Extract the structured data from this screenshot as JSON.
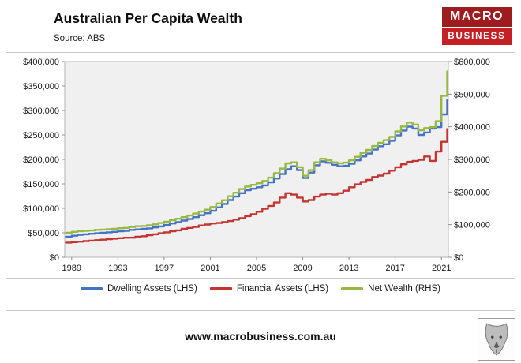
{
  "header": {
    "title": "Australian Per Capita Wealth",
    "source": "Source: ABS"
  },
  "logo": {
    "line1": "MACRO",
    "line2": "BUSINESS",
    "top_color": "#9e1b1e",
    "bottom_color": "#c42127"
  },
  "footer": {
    "url": "www.macrobusiness.com.au"
  },
  "chart_data": {
    "type": "line",
    "title": "Australian Per Capita Wealth",
    "subtitle": "Source: ABS",
    "line_style": "step",
    "grid": false,
    "plot_background": "#f0f0f0",
    "legend_position": "bottom",
    "x_range": [
      1988.4,
      2021.6
    ],
    "x_ticks": [
      1989,
      1993,
      1997,
      2001,
      2005,
      2009,
      2013,
      2017,
      2021
    ],
    "left_axis": {
      "min": 0,
      "max": 400000,
      "tick_step": 50000,
      "tick_labels": [
        "$0",
        "$50,000",
        "$100,000",
        "$150,000",
        "$200,000",
        "$250,000",
        "$300,000",
        "$350,000",
        "$400,000"
      ]
    },
    "right_axis": {
      "min": 0,
      "max": 600000,
      "tick_step": 100000,
      "tick_labels": [
        "$0",
        "$100,000",
        "$200,000",
        "$300,000",
        "$400,000",
        "$500,000",
        "$600,000"
      ]
    },
    "x": [
      1988.5,
      1989,
      1989.5,
      1990,
      1990.5,
      1991,
      1991.5,
      1992,
      1992.5,
      1993,
      1993.5,
      1994,
      1994.5,
      1995,
      1995.5,
      1996,
      1996.5,
      1997,
      1997.5,
      1998,
      1998.5,
      1999,
      1999.5,
      2000,
      2000.5,
      2001,
      2001.5,
      2002,
      2002.5,
      2003,
      2003.5,
      2004,
      2004.5,
      2005,
      2005.5,
      2006,
      2006.5,
      2007,
      2007.5,
      2008,
      2008.5,
      2009,
      2009.5,
      2010,
      2010.5,
      2011,
      2011.5,
      2012,
      2012.5,
      2013,
      2013.5,
      2014,
      2014.5,
      2015,
      2015.5,
      2016,
      2016.5,
      2017,
      2017.5,
      2018,
      2018.5,
      2019,
      2019.5,
      2020,
      2020.5,
      2021,
      2021.5
    ],
    "series": [
      {
        "name": "Dwelling Assets (LHS)",
        "axis": "left",
        "color": "#4472c4",
        "values": [
          42000,
          44000,
          46000,
          47000,
          48000,
          49000,
          50000,
          51000,
          52000,
          53000,
          54000,
          56000,
          57000,
          58000,
          59000,
          61000,
          63000,
          66000,
          69000,
          72000,
          75000,
          78000,
          82000,
          86000,
          90000,
          95000,
          102000,
          109000,
          117000,
          124000,
          131000,
          137000,
          140000,
          143000,
          147000,
          153000,
          161000,
          170000,
          180000,
          186000,
          178000,
          162000,
          173000,
          188000,
          196000,
          193000,
          189000,
          186000,
          187000,
          191000,
          198000,
          206000,
          212000,
          220000,
          227000,
          231000,
          238000,
          249000,
          259000,
          267000,
          263000,
          250000,
          255000,
          263000,
          266000,
          292000,
          321000
        ]
      },
      {
        "name": "Financial Assets (LHS)",
        "axis": "left",
        "color": "#c43431",
        "values": [
          30000,
          31000,
          32000,
          33000,
          34000,
          35000,
          36000,
          37000,
          38000,
          39000,
          40000,
          40000,
          42000,
          43000,
          45000,
          47000,
          49000,
          51000,
          53000,
          55000,
          58000,
          60000,
          62000,
          65000,
          67000,
          69000,
          70000,
          72000,
          74000,
          77000,
          80000,
          84000,
          88000,
          93000,
          99000,
          105000,
          112000,
          122000,
          131000,
          128000,
          122000,
          114000,
          117000,
          124000,
          128000,
          130000,
          128000,
          131000,
          136000,
          143000,
          149000,
          154000,
          158000,
          164000,
          167000,
          171000,
          177000,
          184000,
          190000,
          195000,
          197000,
          199000,
          206000,
          197000,
          216000,
          236000,
          262000
        ]
      },
      {
        "name": "Net Wealth (RHS)",
        "axis": "right",
        "color": "#97b944",
        "values": [
          75000,
          78000,
          80000,
          81000,
          82000,
          84000,
          85000,
          86000,
          87000,
          89000,
          90000,
          93000,
          95000,
          96000,
          98000,
          101000,
          105000,
          109000,
          114000,
          118000,
          123000,
          128000,
          134000,
          140000,
          146000,
          154000,
          165000,
          175000,
          187000,
          198000,
          209000,
          217000,
          222000,
          227000,
          234000,
          244000,
          258000,
          272000,
          288000,
          291000,
          276000,
          250000,
          267000,
          291000,
          302000,
          297000,
          291000,
          288000,
          290000,
          297000,
          308000,
          320000,
          329000,
          341000,
          351000,
          359000,
          369000,
          386000,
          401000,
          413000,
          407000,
          389000,
          396000,
          399000,
          417000,
          495000,
          570000
        ]
      }
    ]
  }
}
